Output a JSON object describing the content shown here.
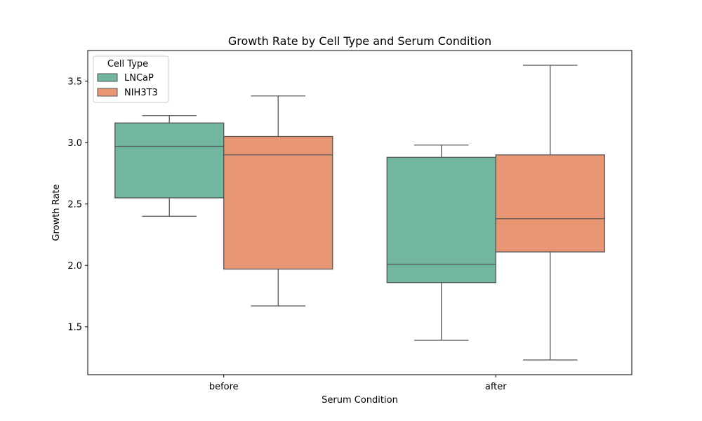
{
  "chart_data": {
    "type": "box",
    "title": "Growth Rate by Cell Type and Serum Condition",
    "xlabel": "Serum Condition",
    "ylabel": "Growth Rate",
    "categories": [
      "before",
      "after"
    ],
    "ylim": [
      1.11,
      3.75
    ],
    "yticks": [
      1.5,
      2.0,
      2.5,
      3.0,
      3.5
    ],
    "ytick_labels": [
      "1.5",
      "2.0",
      "2.5",
      "3.0",
      "3.5"
    ],
    "grid": false,
    "legend": {
      "title": "Cell Type",
      "position": "top-left"
    },
    "series": [
      {
        "name": "LNCaP",
        "color": "#72b6a1",
        "boxes": [
          {
            "whisker_low": 2.4,
            "q1": 2.55,
            "median": 2.97,
            "q3": 3.16,
            "whisker_high": 3.22
          },
          {
            "whisker_low": 1.39,
            "q1": 1.86,
            "median": 2.01,
            "q3": 2.88,
            "whisker_high": 2.98
          }
        ]
      },
      {
        "name": "NIH3T3",
        "color": "#e99675",
        "boxes": [
          {
            "whisker_low": 1.67,
            "q1": 1.97,
            "median": 2.9,
            "q3": 3.05,
            "whisker_high": 3.38
          },
          {
            "whisker_low": 1.23,
            "q1": 2.11,
            "median": 2.38,
            "q3": 2.9,
            "whisker_high": 3.63
          }
        ]
      }
    ]
  }
}
